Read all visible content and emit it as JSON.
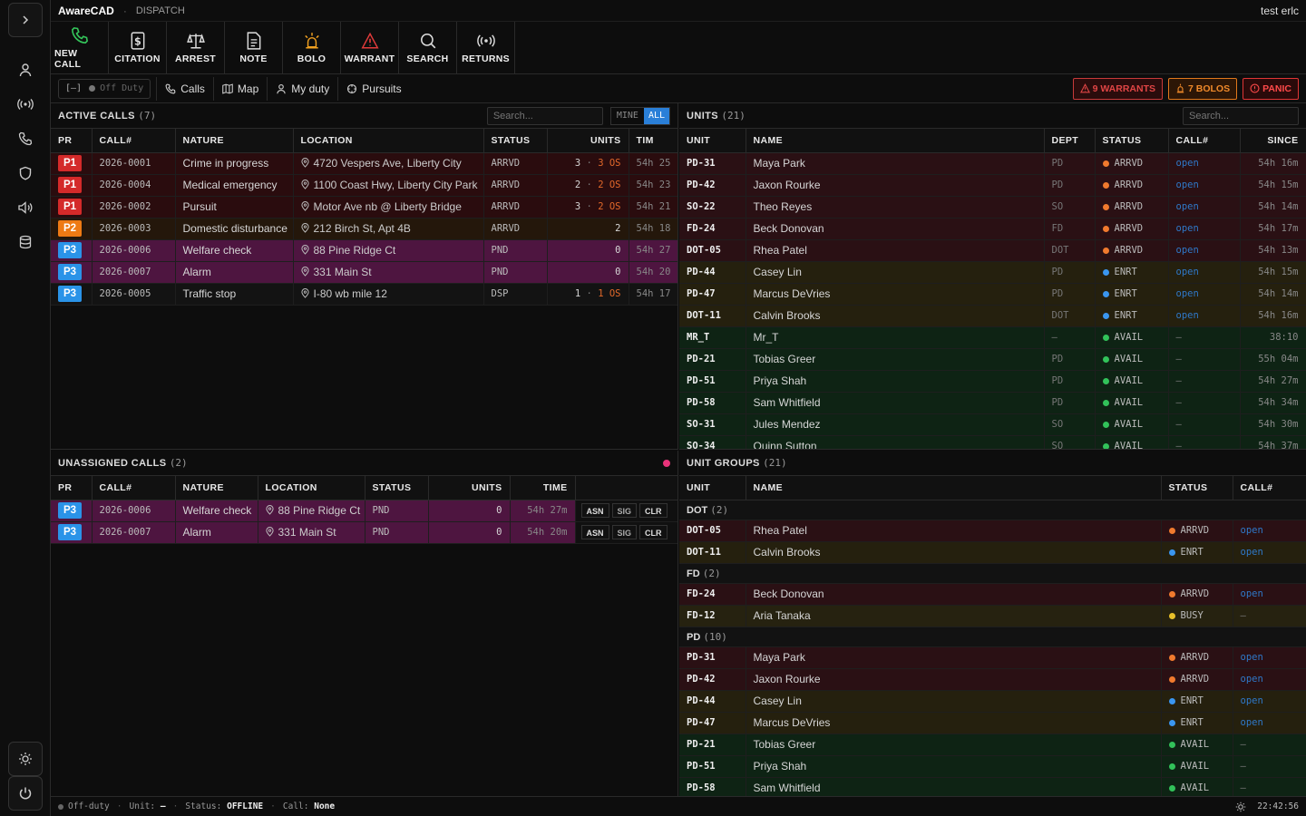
{
  "app": {
    "title": "AwareCAD",
    "module": "DISPATCH",
    "user": "test erlc"
  },
  "toolbar": [
    {
      "label": "NEW CALL",
      "icon": "phone-icon",
      "color": "#34c45a"
    },
    {
      "label": "CITATION",
      "icon": "citation-icon",
      "color": "#e0e0e0"
    },
    {
      "label": "ARREST",
      "icon": "scales-icon",
      "color": "#e0e0e0"
    },
    {
      "label": "NOTE",
      "icon": "note-icon",
      "color": "#e0e0e0"
    },
    {
      "label": "BOLO",
      "icon": "beacon-icon",
      "color": "#f0a020"
    },
    {
      "label": "WARRANT",
      "icon": "warning-icon",
      "color": "#e03a3a"
    },
    {
      "label": "SEARCH",
      "icon": "search-icon",
      "color": "#e0e0e0"
    },
    {
      "label": "RETURNS",
      "icon": "broadcast-icon",
      "color": "#e0e0e0"
    }
  ],
  "subbar": {
    "duty_toggle": "[—]",
    "duty_label": "Off Duty",
    "nav": [
      "Calls",
      "Map",
      "My duty",
      "Pursuits"
    ],
    "warrants": "9 WARRANTS",
    "bolos": "7 BOLOS",
    "panic": "PANIC"
  },
  "active_calls": {
    "title": "ACTIVE CALLS",
    "count": "(7)",
    "search_placeholder": "Search...",
    "filter_mine": "MINE",
    "filter_all": "ALL",
    "columns": [
      "PR",
      "CALL#",
      "NATURE",
      "LOCATION",
      "STATUS",
      "UNITS",
      "TIM"
    ],
    "rows": [
      {
        "pr": "P1",
        "call": "2026-0001",
        "nature": "Crime in progress",
        "location": "4720 Vespers Ave, Liberty City",
        "status": "ARRVD",
        "units": "3",
        "os": "3 OS",
        "time": "54h 25",
        "row": "rP1"
      },
      {
        "pr": "P1",
        "call": "2026-0004",
        "nature": "Medical emergency",
        "location": "1100 Coast Hwy, Liberty City Park",
        "status": "ARRVD",
        "units": "2",
        "os": "2 OS",
        "time": "54h 23",
        "row": "rP1"
      },
      {
        "pr": "P1",
        "call": "2026-0002",
        "nature": "Pursuit",
        "location": "Motor Ave nb @ Liberty Bridge",
        "status": "ARRVD",
        "units": "3",
        "os": "2 OS",
        "time": "54h 21",
        "row": "rP1"
      },
      {
        "pr": "P2",
        "call": "2026-0003",
        "nature": "Domestic disturbance",
        "location": "212 Birch St, Apt 4B",
        "status": "ARRVD",
        "units": "2",
        "os": "",
        "time": "54h 18",
        "row": "rP2"
      },
      {
        "pr": "P3",
        "call": "2026-0006",
        "nature": "Welfare check",
        "location": "88 Pine Ridge Ct",
        "status": "PND",
        "units": "0",
        "os": "",
        "time": "54h 27",
        "row": "rP3a"
      },
      {
        "pr": "P3",
        "call": "2026-0007",
        "nature": "Alarm",
        "location": "331 Main St",
        "status": "PND",
        "units": "0",
        "os": "",
        "time": "54h 20",
        "row": "rP3a"
      },
      {
        "pr": "P3",
        "call": "2026-0005",
        "nature": "Traffic stop",
        "location": "I-80 wb mile 12",
        "status": "DSP",
        "units": "1",
        "os": "1 OS",
        "time": "54h 17",
        "row": "rP3d"
      }
    ]
  },
  "units": {
    "title": "UNITS",
    "count": "(21)",
    "search_placeholder": "Search...",
    "columns": [
      "UNIT",
      "NAME",
      "DEPT",
      "STATUS",
      "CALL#",
      "SINCE"
    ],
    "rows": [
      {
        "unit": "PD-31",
        "name": "Maya Park",
        "dept": "PD",
        "status": "ARRVD",
        "call": "open",
        "since": "54h 16m",
        "cls": "arr"
      },
      {
        "unit": "PD-42",
        "name": "Jaxon Rourke",
        "dept": "PD",
        "status": "ARRVD",
        "call": "open",
        "since": "54h 15m",
        "cls": "arr"
      },
      {
        "unit": "SO-22",
        "name": "Theo Reyes",
        "dept": "SO",
        "status": "ARRVD",
        "call": "open",
        "since": "54h 14m",
        "cls": "arr"
      },
      {
        "unit": "FD-24",
        "name": "Beck Donovan",
        "dept": "FD",
        "status": "ARRVD",
        "call": "open",
        "since": "54h 17m",
        "cls": "arr"
      },
      {
        "unit": "DOT-05",
        "name": "Rhea Patel",
        "dept": "DOT",
        "status": "ARRVD",
        "call": "open",
        "since": "54h 13m",
        "cls": "arr"
      },
      {
        "unit": "PD-44",
        "name": "Casey Lin",
        "dept": "PD",
        "status": "ENRT",
        "call": "open",
        "since": "54h 15m",
        "cls": "enr"
      },
      {
        "unit": "PD-47",
        "name": "Marcus DeVries",
        "dept": "PD",
        "status": "ENRT",
        "call": "open",
        "since": "54h 14m",
        "cls": "enr"
      },
      {
        "unit": "DOT-11",
        "name": "Calvin Brooks",
        "dept": "DOT",
        "status": "ENRT",
        "call": "open",
        "since": "54h 16m",
        "cls": "enr"
      },
      {
        "unit": "MR_T",
        "name": "Mr_T",
        "dept": "—",
        "status": "AVAIL",
        "call": "—",
        "since": "38:10",
        "cls": "av"
      },
      {
        "unit": "PD-21",
        "name": "Tobias Greer",
        "dept": "PD",
        "status": "AVAIL",
        "call": "—",
        "since": "55h 04m",
        "cls": "av"
      },
      {
        "unit": "PD-51",
        "name": "Priya Shah",
        "dept": "PD",
        "status": "AVAIL",
        "call": "—",
        "since": "54h 27m",
        "cls": "av"
      },
      {
        "unit": "PD-58",
        "name": "Sam Whitfield",
        "dept": "PD",
        "status": "AVAIL",
        "call": "—",
        "since": "54h 34m",
        "cls": "av"
      },
      {
        "unit": "SO-31",
        "name": "Jules Mendez",
        "dept": "SO",
        "status": "AVAIL",
        "call": "—",
        "since": "54h 30m",
        "cls": "av"
      },
      {
        "unit": "SO-34",
        "name": "Quinn Sutton",
        "dept": "SO",
        "status": "AVAIL",
        "call": "—",
        "since": "54h 37m",
        "cls": "av"
      }
    ]
  },
  "unassigned": {
    "title": "UNASSIGNED CALLS",
    "count": "(2)",
    "columns": [
      "PR",
      "CALL#",
      "NATURE",
      "LOCATION",
      "STATUS",
      "UNITS",
      "TIME"
    ],
    "actions": [
      "ASN",
      "SIG",
      "CLR"
    ],
    "rows": [
      {
        "pr": "P3",
        "call": "2026-0006",
        "nature": "Welfare check",
        "location": "88 Pine Ridge Ct",
        "status": "PND",
        "units": "0",
        "time": "54h 27m"
      },
      {
        "pr": "P3",
        "call": "2026-0007",
        "nature": "Alarm",
        "location": "331 Main St",
        "status": "PND",
        "units": "0",
        "time": "54h 20m"
      }
    ]
  },
  "groups": {
    "title": "UNIT GROUPS",
    "count": "(21)",
    "columns": [
      "UNIT",
      "NAME",
      "STATUS",
      "CALL#"
    ],
    "sections": [
      {
        "name": "DOT",
        "count": "(2)",
        "rows": [
          {
            "unit": "DOT-05",
            "name": "Rhea Patel",
            "status": "ARRVD",
            "call": "open",
            "cls": "arr"
          },
          {
            "unit": "DOT-11",
            "name": "Calvin Brooks",
            "status": "ENRT",
            "call": "open",
            "cls": "enr"
          }
        ]
      },
      {
        "name": "FD",
        "count": "(2)",
        "rows": [
          {
            "unit": "FD-24",
            "name": "Beck Donovan",
            "status": "ARRVD",
            "call": "open",
            "cls": "arr"
          },
          {
            "unit": "FD-12",
            "name": "Aria Tanaka",
            "status": "BUSY",
            "call": "—",
            "cls": "busy"
          }
        ]
      },
      {
        "name": "PD",
        "count": "(10)",
        "rows": [
          {
            "unit": "PD-31",
            "name": "Maya Park",
            "status": "ARRVD",
            "call": "open",
            "cls": "arr"
          },
          {
            "unit": "PD-42",
            "name": "Jaxon Rourke",
            "status": "ARRVD",
            "call": "open",
            "cls": "arr"
          },
          {
            "unit": "PD-44",
            "name": "Casey Lin",
            "status": "ENRT",
            "call": "open",
            "cls": "enr"
          },
          {
            "unit": "PD-47",
            "name": "Marcus DeVries",
            "status": "ENRT",
            "call": "open",
            "cls": "enr"
          },
          {
            "unit": "PD-21",
            "name": "Tobias Greer",
            "status": "AVAIL",
            "call": "—",
            "cls": "av"
          },
          {
            "unit": "PD-51",
            "name": "Priya Shah",
            "status": "AVAIL",
            "call": "—",
            "cls": "av"
          },
          {
            "unit": "PD-58",
            "name": "Sam Whitfield",
            "status": "AVAIL",
            "call": "—",
            "cls": "av"
          }
        ]
      }
    ]
  },
  "statusbar": {
    "state": "Off-duty",
    "unit_label": "Unit:",
    "unit_value": "—",
    "status_label": "Status:",
    "status_value": "OFFLINE",
    "call_label": "Call:",
    "call_value": "None",
    "clock": "22:42:56"
  }
}
